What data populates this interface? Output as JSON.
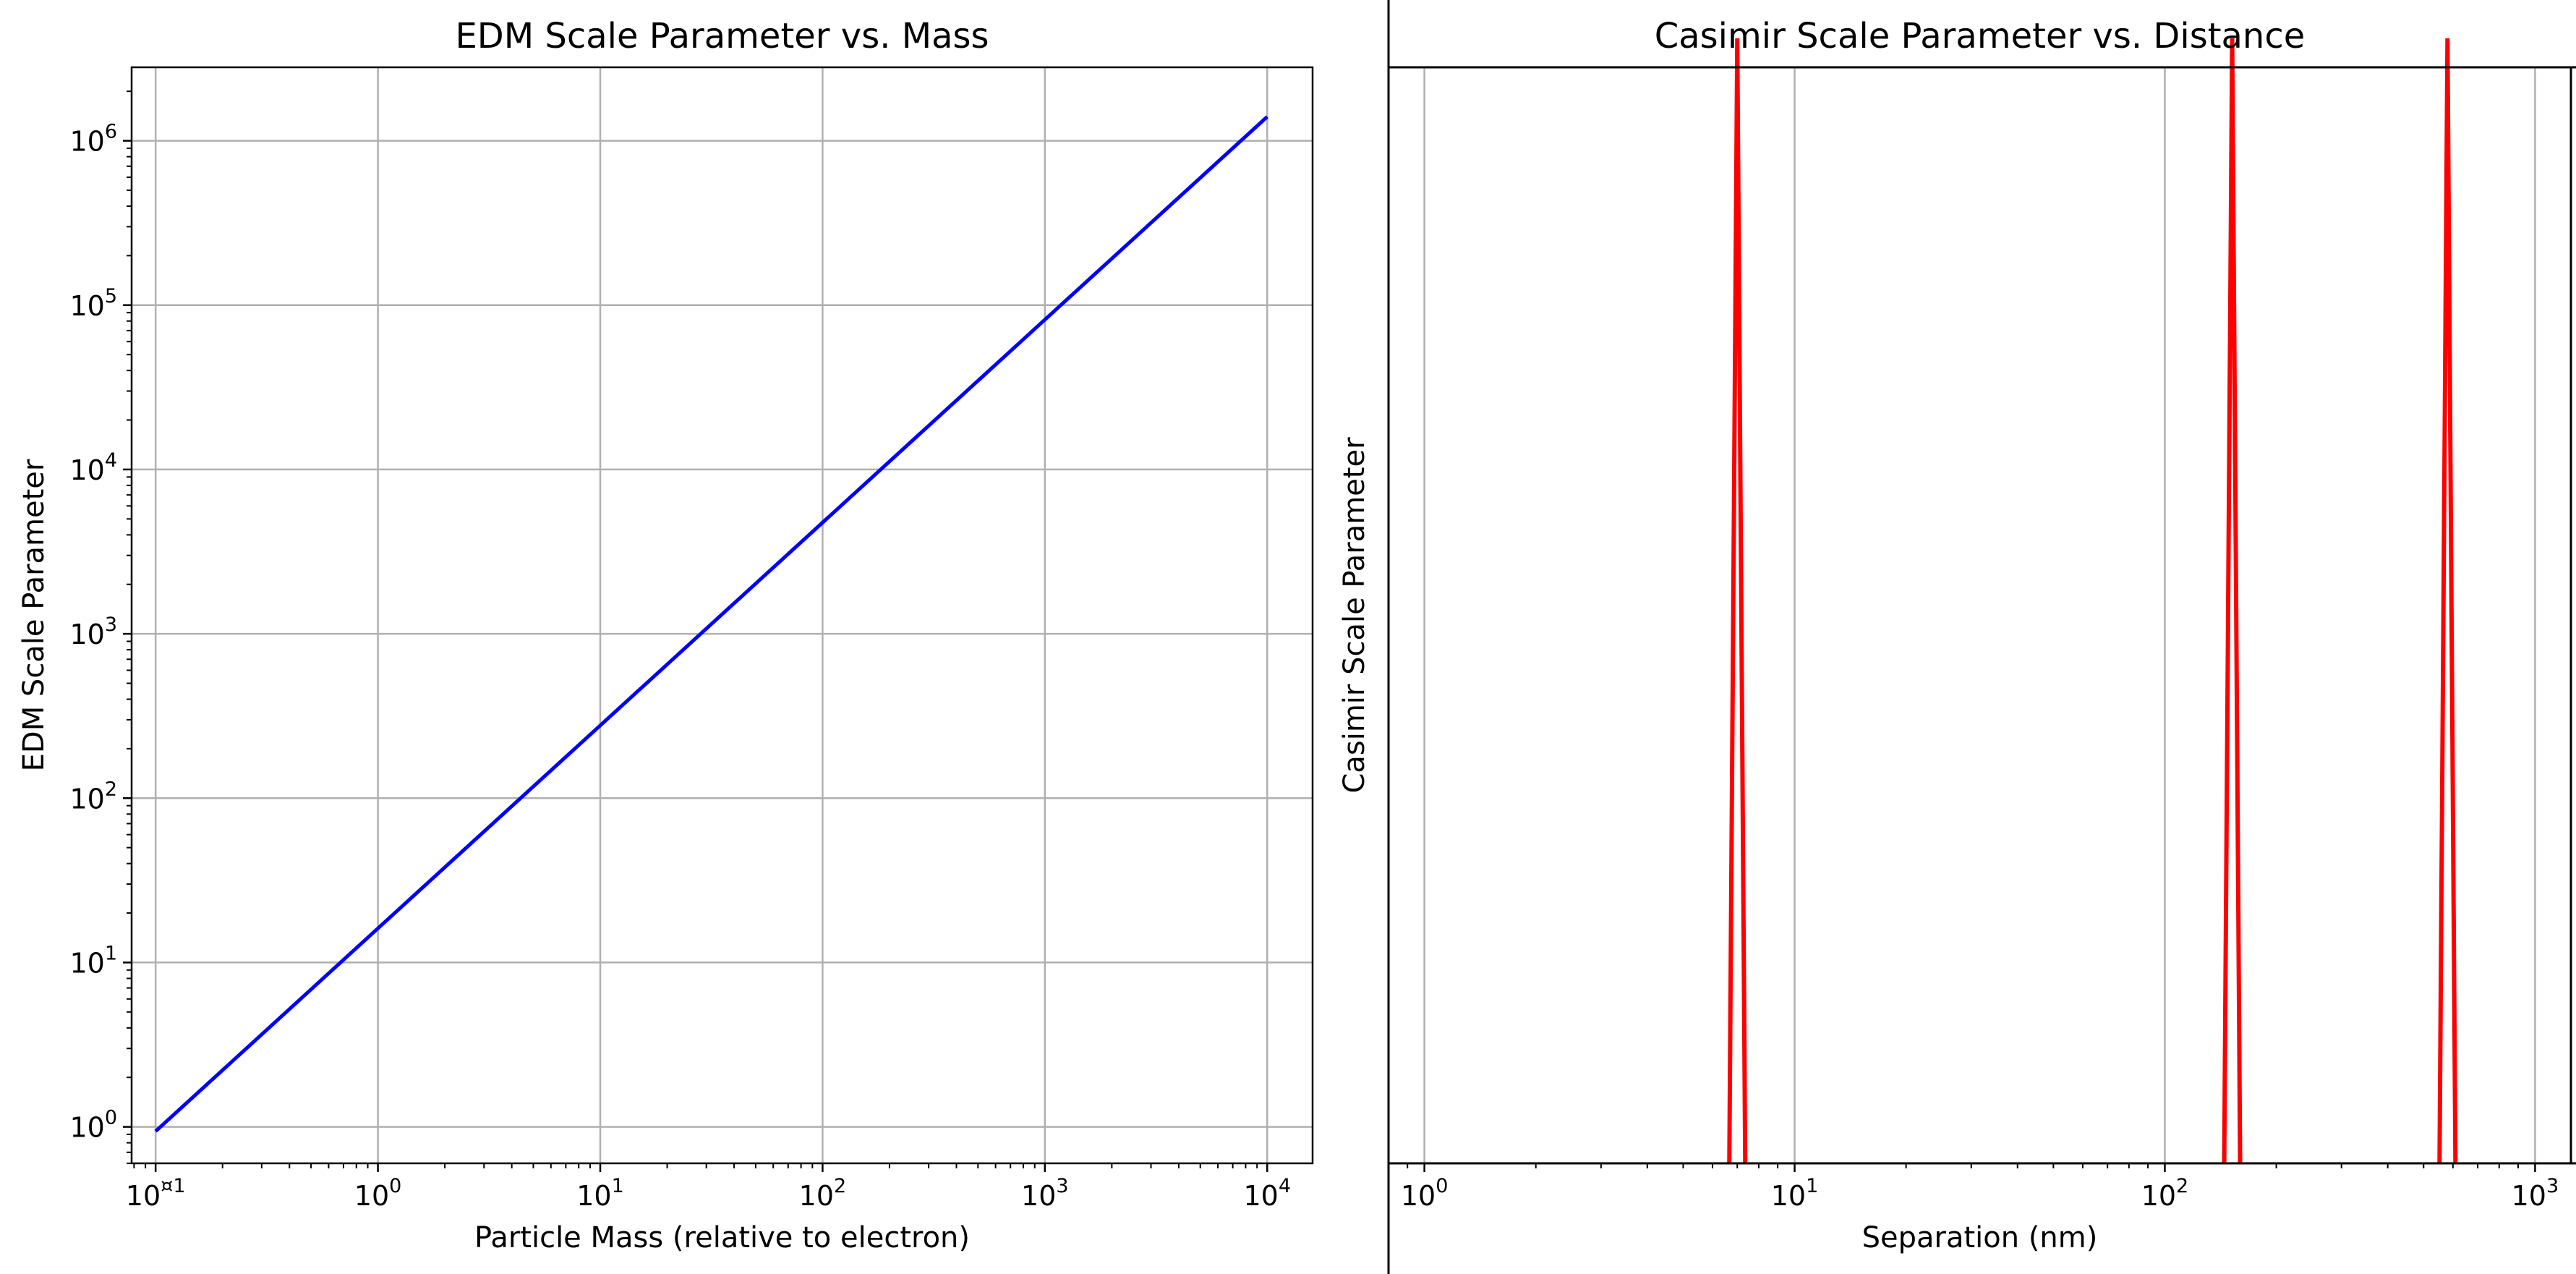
{
  "chart_data": [
    {
      "type": "line",
      "title": "EDM Scale Parameter vs. Mass",
      "xlabel": "Particle Mass (relative to electron)",
      "ylabel": "EDM Scale Parameter",
      "xscale": "log",
      "yscale": "log",
      "xlim": [
        0.078,
        16000
      ],
      "ylim": [
        0.6,
        2800000
      ],
      "grid": true,
      "xticks": [
        {
          "value": 0.1,
          "base": "10",
          "exp": "¤1"
        },
        {
          "value": 1,
          "base": "10",
          "exp": "0"
        },
        {
          "value": 10,
          "base": "10",
          "exp": "1"
        },
        {
          "value": 100,
          "base": "10",
          "exp": "2"
        },
        {
          "value": 1000,
          "base": "10",
          "exp": "3"
        },
        {
          "value": 10000,
          "base": "10",
          "exp": "4"
        }
      ],
      "yticks": [
        {
          "value": 1,
          "base": "10",
          "exp": "0"
        },
        {
          "value": 10,
          "base": "10",
          "exp": "1"
        },
        {
          "value": 100,
          "base": "10",
          "exp": "2"
        },
        {
          "value": 1000,
          "base": "10",
          "exp": "3"
        },
        {
          "value": 10000,
          "base": "10",
          "exp": "4"
        },
        {
          "value": 100000,
          "base": "10",
          "exp": "5"
        },
        {
          "value": 1000000,
          "base": "10",
          "exp": "6"
        }
      ],
      "series": [
        {
          "color": "#0000ff",
          "x": [
            0.1,
            10000
          ],
          "y": [
            0.94,
            1400000
          ]
        }
      ]
    },
    {
      "type": "line",
      "title": "Casimir Scale Parameter vs. Distance",
      "xlabel": "Separation (nm)",
      "ylabel": "Casimir Scale Parameter",
      "xscale": "log",
      "xlim": [
        0.8,
        1250
      ],
      "ylim": [
        0,
        1
      ],
      "grid": "x-only",
      "xticks": [
        {
          "value": 1,
          "base": "10",
          "exp": "0"
        },
        {
          "value": 10,
          "base": "10",
          "exp": "1"
        },
        {
          "value": 100,
          "base": "10",
          "exp": "2"
        },
        {
          "value": 1000,
          "base": "10",
          "exp": "3"
        }
      ],
      "series": [
        {
          "color": "#ff0000",
          "spikes_x": [
            7.0,
            152,
            580
          ]
        }
      ]
    }
  ]
}
